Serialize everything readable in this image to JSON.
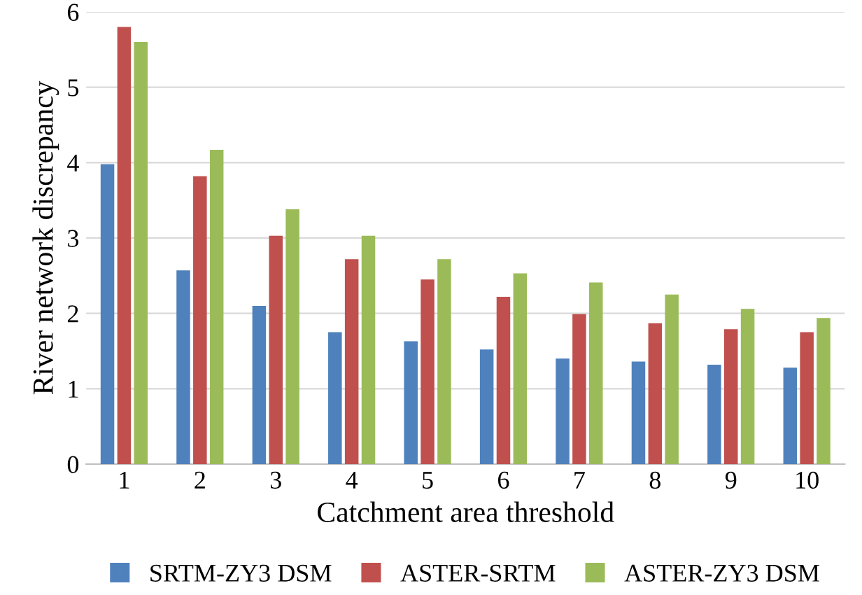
{
  "chart_data": {
    "type": "bar",
    "xlabel": "Catchment area threshold",
    "ylabel": "River network discrepancy",
    "categories": [
      "1",
      "2",
      "3",
      "4",
      "5",
      "6",
      "7",
      "8",
      "9",
      "10"
    ],
    "series": [
      {
        "name": "SRTM-ZY3 DSM",
        "color": "#4f81bd",
        "values": [
          3.98,
          2.57,
          2.1,
          1.75,
          1.63,
          1.52,
          1.4,
          1.36,
          1.32,
          1.28
        ]
      },
      {
        "name": "ASTER-SRTM",
        "color": "#c0504d",
        "values": [
          5.8,
          3.82,
          3.03,
          2.72,
          2.45,
          2.22,
          1.99,
          1.87,
          1.79,
          1.75
        ]
      },
      {
        "name": "ASTER-ZY3 DSM",
        "color": "#9bbb59",
        "values": [
          5.6,
          4.17,
          3.38,
          3.03,
          2.72,
          2.53,
          2.41,
          2.25,
          2.06,
          1.94
        ]
      }
    ],
    "ylim": [
      0,
      6
    ],
    "yticks": [
      0,
      1,
      2,
      3,
      4,
      5,
      6
    ],
    "grid": "y",
    "legend": "bottom"
  }
}
